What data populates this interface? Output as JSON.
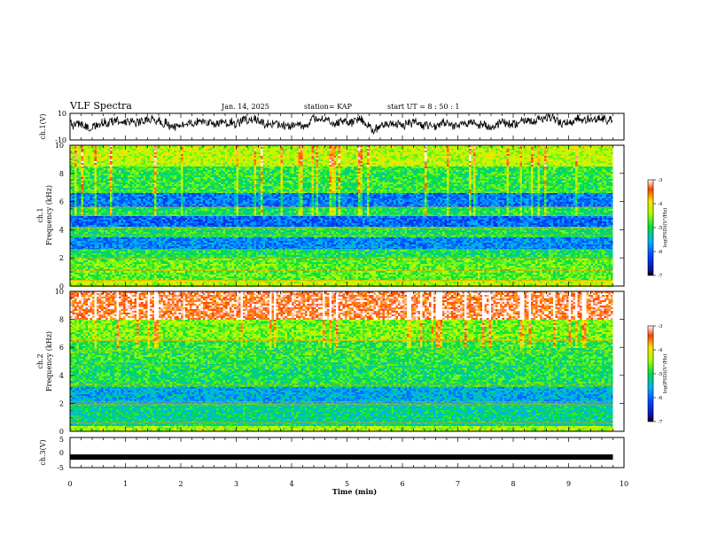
{
  "header": {
    "title": "VLF Spectra",
    "date": "Jan. 14, 2025",
    "station": "station= KAP",
    "start_ut": "start  UT =  8 : 50 : 1"
  },
  "chart_data": [
    {
      "type": "line",
      "name": "ch1-waveform",
      "ylabel": "ch.1(V)",
      "ylim": [
        -10,
        10
      ],
      "yticks": [
        "10",
        "-10"
      ],
      "x_range_min": [
        0,
        9.8
      ],
      "series": [
        {
          "name": "ch.1",
          "description_note": "dense oscillating voltage trace, mostly between -3 and 10 V"
        }
      ]
    },
    {
      "type": "heatmap",
      "name": "ch1-spectrogram",
      "ylabel": "ch.1\nFrequency (kHz)",
      "ylabel_lines": [
        "ch.1",
        "Frequency (kHz)"
      ],
      "ylim": [
        0,
        10
      ],
      "yticks": [
        "0",
        "2",
        "4",
        "6",
        "8",
        "10"
      ],
      "colorbar": {
        "label": "log(PSD)(V²/Hz)",
        "range": [
          -7,
          -3
        ],
        "ticks": [
          "-3",
          "-4",
          "-5",
          "-6",
          "-7"
        ]
      },
      "freq_bands_khz": [
        {
          "from": 0.0,
          "to": 0.5,
          "level": -4.3
        },
        {
          "from": 0.5,
          "to": 2.0,
          "level": -4.7
        },
        {
          "from": 2.0,
          "to": 2.6,
          "level": -5.0
        },
        {
          "from": 2.6,
          "to": 3.4,
          "level": -5.8
        },
        {
          "from": 3.4,
          "to": 4.2,
          "level": -5.0
        },
        {
          "from": 4.2,
          "to": 5.0,
          "level": -6.0
        },
        {
          "from": 5.0,
          "to": 5.6,
          "level": -5.0
        },
        {
          "from": 5.6,
          "to": 6.6,
          "level": -5.9
        },
        {
          "from": 6.6,
          "to": 8.5,
          "level": -4.9
        },
        {
          "from": 8.5,
          "to": 10.0,
          "level": -4.3
        }
      ]
    },
    {
      "type": "heatmap",
      "name": "ch2-spectrogram",
      "ylabel": "ch.2\nFrequency (kHz)",
      "ylabel_lines": [
        "ch.2",
        "Frequency (kHz)"
      ],
      "ylim": [
        0,
        10
      ],
      "yticks": [
        "0",
        "2",
        "4",
        "6",
        "8",
        "10"
      ],
      "colorbar": {
        "label": "log(PSD)(V²/Hz)",
        "range": [
          -7,
          -3
        ],
        "ticks": [
          "-3",
          "-4",
          "-5",
          "-6",
          "-7"
        ]
      },
      "freq_bands_khz": [
        {
          "from": 0.0,
          "to": 0.4,
          "level": -4.4
        },
        {
          "from": 0.4,
          "to": 2.0,
          "level": -5.2
        },
        {
          "from": 2.0,
          "to": 3.2,
          "level": -5.6
        },
        {
          "from": 3.2,
          "to": 5.0,
          "level": -5.0
        },
        {
          "from": 5.0,
          "to": 6.5,
          "level": -4.9
        },
        {
          "from": 6.5,
          "to": 8.0,
          "level": -4.6
        },
        {
          "from": 8.0,
          "to": 10.0,
          "level": -3.3
        }
      ]
    },
    {
      "type": "line",
      "name": "ch3-trace",
      "ylabel": "ch.3(V)",
      "ylim": [
        -5,
        5
      ],
      "yticks": [
        "5",
        "0",
        "-5"
      ],
      "series": [
        {
          "name": "ch.3",
          "x": [
            0,
            9.8
          ],
          "y": [
            -1.5,
            -1.5
          ]
        }
      ]
    }
  ],
  "x_axis": {
    "label": "Time (min)",
    "range": [
      0,
      10
    ],
    "ticks": [
      "0",
      "1",
      "2",
      "3",
      "4",
      "5",
      "6",
      "7",
      "8",
      "9",
      "10"
    ],
    "data_end_min": 9.8
  }
}
